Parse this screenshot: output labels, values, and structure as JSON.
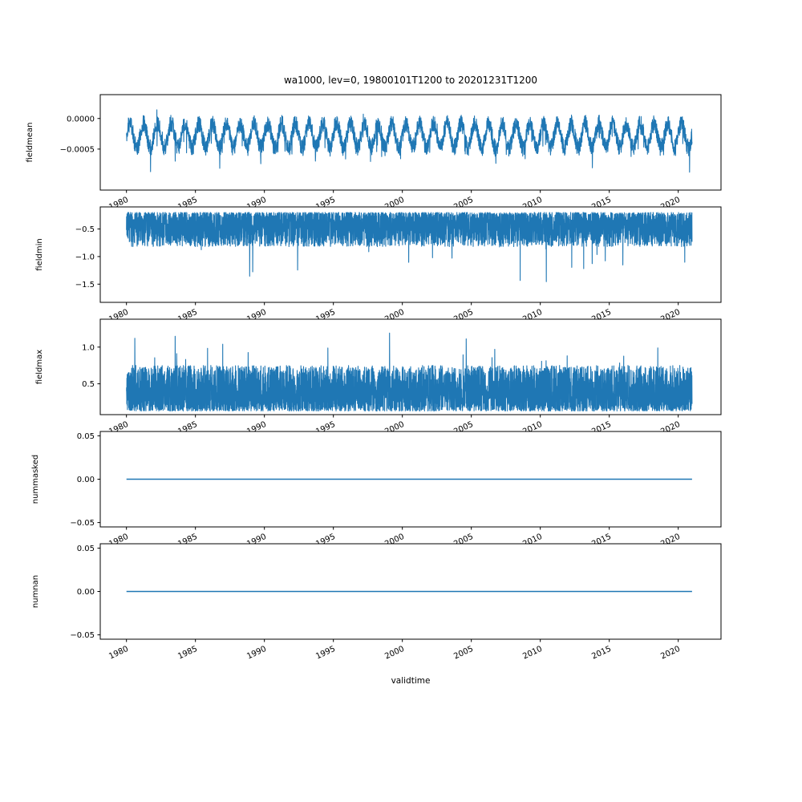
{
  "figure": {
    "background": "#ffffff",
    "line_color": "#1f77b4",
    "axis_color": "#000000"
  },
  "chart_data": {
    "type": "line",
    "title": "wa1000, lev=0, 19800101T1200 to 20201231T1200",
    "xlabel": "validtime",
    "grid": false,
    "legend": "none",
    "x_range_years": [
      1980.0,
      2021.0
    ],
    "xlim": [
      1978.1,
      2023.1
    ],
    "xticks": [
      1980,
      1985,
      1990,
      1995,
      2000,
      2005,
      2010,
      2015,
      2020
    ],
    "xtick_rotation_deg": 25,
    "subplots": [
      {
        "ylabel": "fieldmean",
        "ylim": [
          -0.00117,
          0.00039
        ],
        "yticks": [
          {
            "v": 0.0,
            "label": "0.0000"
          },
          {
            "v": -0.0005,
            "label": "−0.0005"
          }
        ],
        "series": {
          "kind": "seasonal_noise",
          "base": -0.00028,
          "seasonal_amplitude": 0.0002,
          "period_years": 1,
          "noise_amplitude": 0.00014,
          "spike_down_amplitude": 0.00035,
          "spike_down_probability": 0.025,
          "spike_up_amplitude": 0.00018,
          "spike_up_probability": 0.012,
          "seed": 11
        }
      },
      {
        "ylabel": "fieldmin",
        "ylim": [
          -1.83,
          -0.1
        ],
        "yticks": [
          {
            "v": -0.5,
            "label": "−0.5"
          },
          {
            "v": -1.0,
            "label": "−1.0"
          },
          {
            "v": -1.5,
            "label": "−1.5"
          }
        ],
        "series": {
          "kind": "noise_band",
          "edge": 0.2,
          "band_depth": 0.62,
          "band_bias_power": 1.4,
          "spike_amplitude": 0.85,
          "spike_probability": 0.005,
          "direction": -1,
          "seed": 22
        }
      },
      {
        "ylabel": "fieldmax",
        "ylim": [
          0.08,
          1.38
        ],
        "yticks": [
          {
            "v": 1.0,
            "label": "1.0"
          },
          {
            "v": 0.5,
            "label": "0.5"
          }
        ],
        "series": {
          "kind": "noise_band",
          "edge": 0.13,
          "band_depth": 0.62,
          "band_bias_power": 1.4,
          "spike_amplitude": 0.55,
          "spike_probability": 0.009,
          "direction": 1,
          "seed": 33
        }
      },
      {
        "ylabel": "nummasked",
        "ylim": [
          -0.055,
          0.055
        ],
        "yticks": [
          {
            "v": 0.05,
            "label": "0.05"
          },
          {
            "v": 0.0,
            "label": "0.00"
          },
          {
            "v": -0.05,
            "label": "−0.05"
          }
        ],
        "series": {
          "kind": "constant",
          "value": 0.0
        }
      },
      {
        "ylabel": "numnan",
        "ylim": [
          -0.055,
          0.055
        ],
        "yticks": [
          {
            "v": 0.05,
            "label": "0.05"
          },
          {
            "v": 0.0,
            "label": "0.00"
          },
          {
            "v": -0.05,
            "label": "−0.05"
          }
        ],
        "series": {
          "kind": "constant",
          "value": 0.0
        }
      }
    ]
  }
}
